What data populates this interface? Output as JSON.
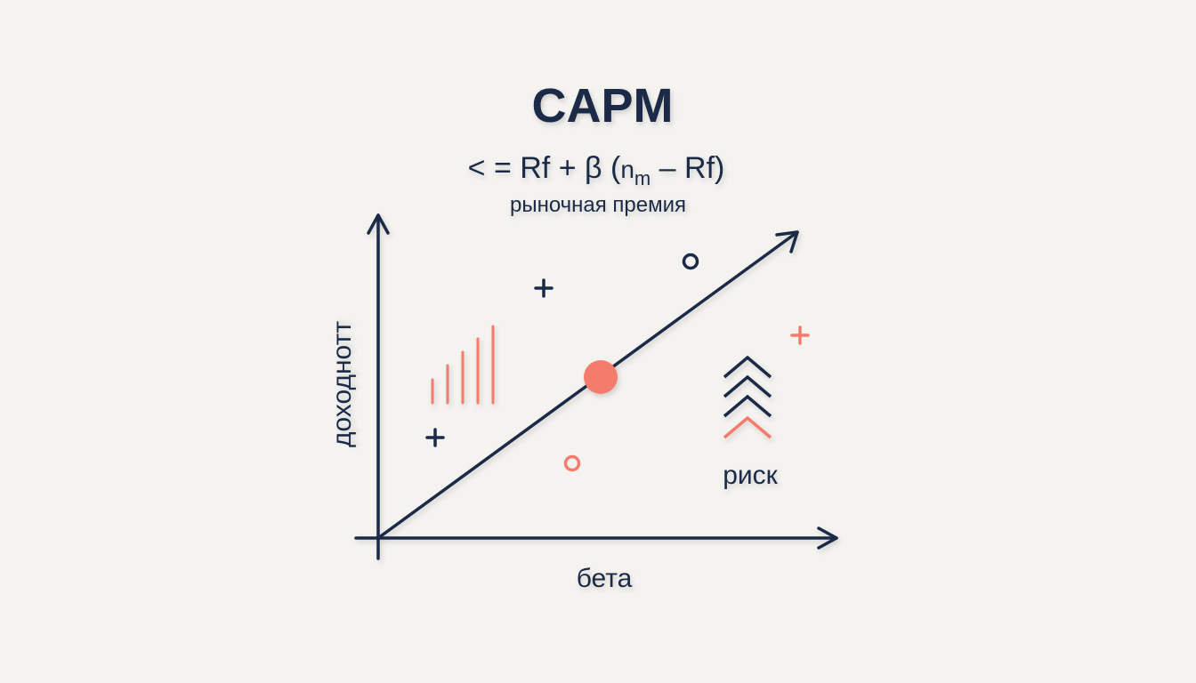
{
  "title": "CAPM",
  "formula": {
    "before": "< = Rf + β (",
    "base": "n",
    "sub": "m",
    "after": " – Rf)"
  },
  "subtitle": "рыночная премия",
  "y_axis_label": "доходнотт",
  "x_axis_label": "бета",
  "risk_label": "риск"
}
